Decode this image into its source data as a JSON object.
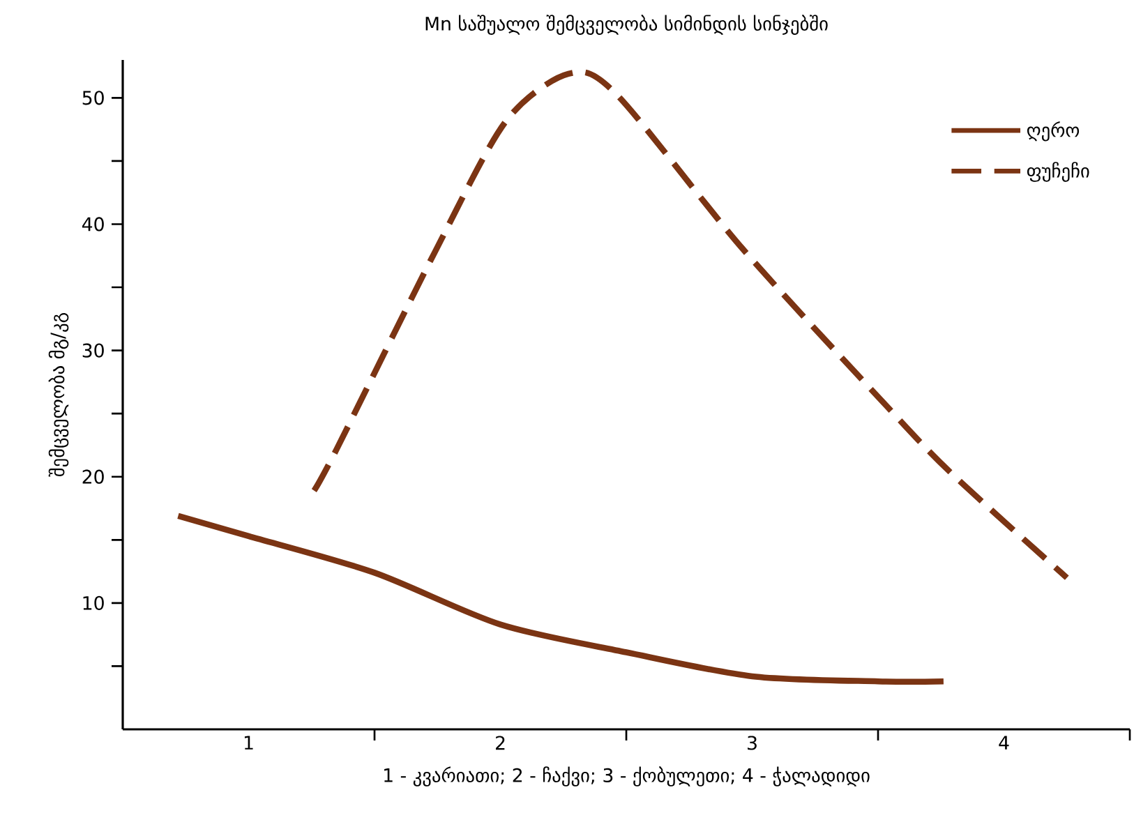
{
  "chart_data": {
    "type": "line",
    "title": "Mn საშუალო შემცველობა სიმინდის სინჯებში",
    "xlabel": "1 - კვარიათი; 2 - ჩაქვი; 3 - ქობულეთი; 4 - ჭალადიდი",
    "ylabel": "შემცველობა მგ/კგ",
    "series": [
      {
        "name": "ღერო",
        "color": "#7b3413",
        "line_style": "solid",
        "x": [
          0.72,
          1.0,
          1.5,
          2.0,
          2.5,
          3.0,
          3.5,
          3.76
        ],
        "values": [
          16.9,
          15.3,
          12.4,
          8.3,
          6.1,
          4.2,
          3.8,
          3.8
        ]
      },
      {
        "name": "ფუჩეჩი",
        "color": "#7b3413",
        "line_style": "dashed",
        "x": [
          1.26,
          1.35,
          1.74,
          2.02,
          2.27,
          2.46,
          2.96,
          3.52,
          3.79,
          4.25
        ],
        "values": [
          18.9,
          22.2,
          37.8,
          48.1,
          51.9,
          50.3,
          38.1,
          25.9,
          20.3,
          12.0
        ]
      }
    ],
    "xlim": [
      0.5,
      4.5
    ],
    "xticks": [
      {
        "value": 1,
        "label": "1"
      },
      {
        "value": 1.5,
        "label": null
      },
      {
        "value": 2,
        "label": "2"
      },
      {
        "value": 2.5,
        "label": null
      },
      {
        "value": 3,
        "label": "3"
      },
      {
        "value": 3.5,
        "label": null
      },
      {
        "value": 4,
        "label": "4"
      },
      {
        "value": 4.5,
        "label": null
      }
    ],
    "ylim": [
      0,
      53
    ],
    "yticks": [
      {
        "value": 5,
        "label": null
      },
      10,
      {
        "value": 15,
        "label": null
      },
      20,
      {
        "value": 25,
        "label": null
      },
      30,
      {
        "value": 35,
        "label": null
      },
      40,
      {
        "value": 45,
        "label": null
      },
      50
    ],
    "grid": false,
    "legend": "top right"
  }
}
